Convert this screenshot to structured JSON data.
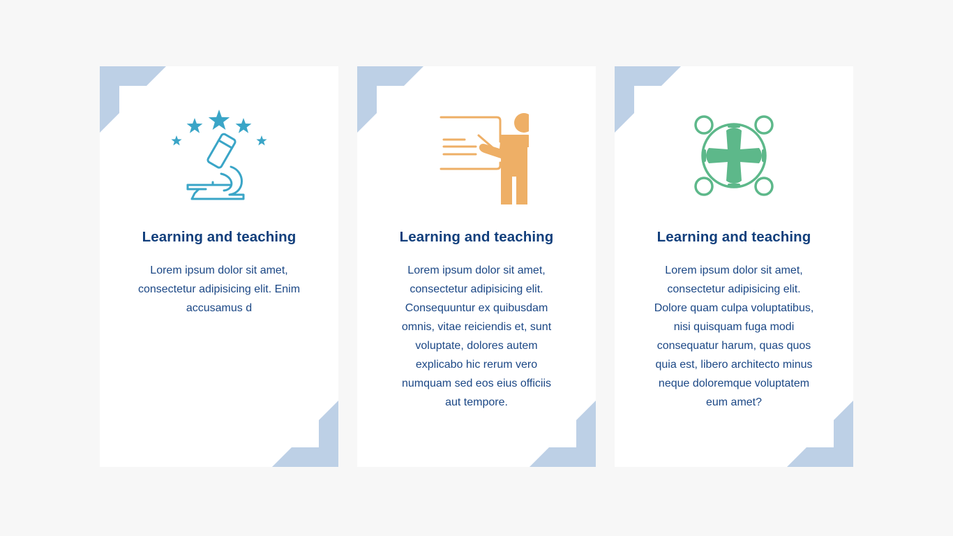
{
  "colors": {
    "background": "#f7f7f7",
    "card": "#ffffff",
    "corner": "#bdd0e6",
    "title": "#123f7c",
    "text": "#1b4785",
    "icon_microscope": "#3aa5c7",
    "icon_teacher": "#eeaf66",
    "icon_network": "#5db88a"
  },
  "cards": [
    {
      "icon": "microscope-stars-icon",
      "title": "Learning and teaching",
      "text": "Lorem ipsum dolor sit amet, consectetur adipisicing elit. Enim accusamus d"
    },
    {
      "icon": "teacher-board-icon",
      "title": "Learning and teaching",
      "text": "Lorem ipsum dolor sit amet, consectetur adipisicing elit. Consequuntur ex quibusdam omnis, vitae reiciendis et, sunt voluptate, dolores autem explicabo hic rerum vero numquam sed eos eius officiis aut tempore."
    },
    {
      "icon": "network-hub-icon",
      "title": "Learning and teaching",
      "text": "Lorem ipsum dolor sit amet, consectetur adipisicing elit. Dolore quam culpa voluptatibus, nisi quisquam fuga modi consequatur harum, quas quos quia est, libero architecto minus neque doloremque voluptatem eum amet?"
    }
  ]
}
